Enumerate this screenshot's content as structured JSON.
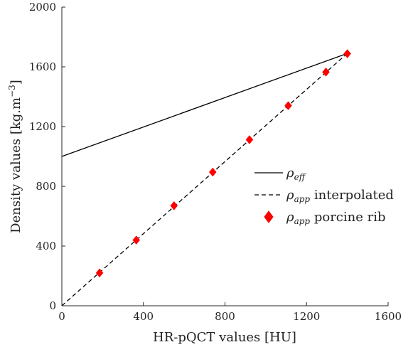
{
  "chart_data": {
    "type": "line",
    "xlabel": "HR-pQCT values [HU]",
    "ylabel_main": "Density values [kg.m",
    "ylabel_sup": "−3",
    "ylabel_close": "]",
    "xlim": [
      0,
      1600
    ],
    "ylim": [
      0,
      2000
    ],
    "xticks": [
      0,
      400,
      800,
      1200,
      1600
    ],
    "yticks": [
      0,
      400,
      800,
      1200,
      1600,
      2000
    ],
    "grid": false,
    "legend_position": "right",
    "series": [
      {
        "name_main": "ρ",
        "name_sub": "eff",
        "name_rest": "",
        "style": "solid",
        "color": "#000000",
        "x": [
          0,
          1400
        ],
        "y": [
          1000,
          1690
        ]
      },
      {
        "name_main": "ρ",
        "name_sub": "app",
        "name_rest": " interpolated",
        "style": "dashed",
        "color": "#000000",
        "x": [
          0,
          1400
        ],
        "y": [
          0,
          1690
        ]
      },
      {
        "name_main": "ρ",
        "name_sub": "app",
        "name_rest": " porcine rib",
        "style": "marker-diamond",
        "color": "#ff0000",
        "x": [
          185,
          365,
          550,
          740,
          920,
          1110,
          1295,
          1400
        ],
        "y": [
          220,
          440,
          670,
          895,
          1112,
          1340,
          1565,
          1688
        ]
      }
    ]
  }
}
